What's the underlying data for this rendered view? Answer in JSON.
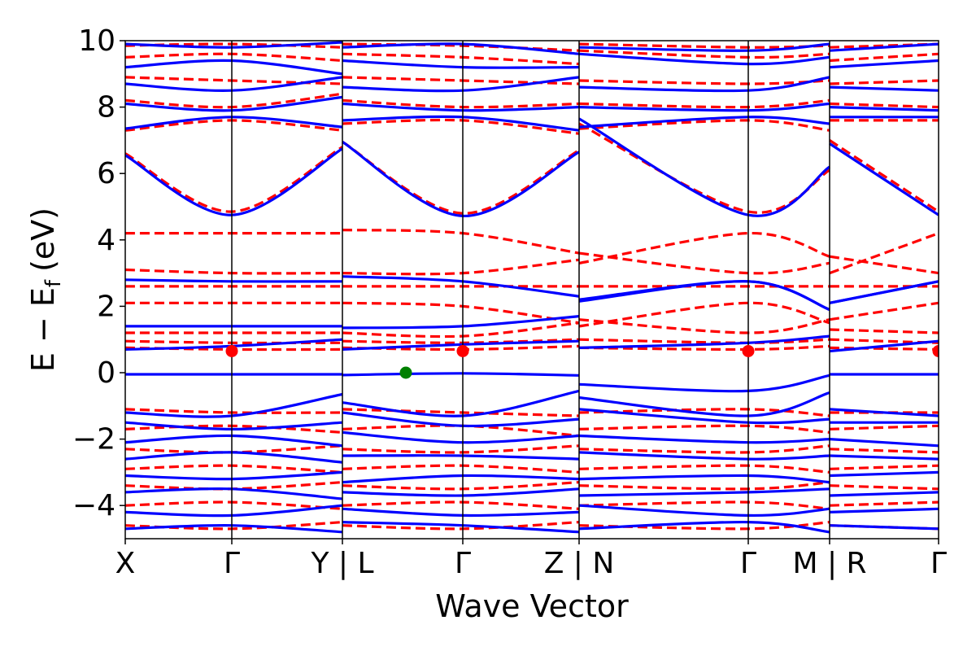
{
  "chart_data": {
    "type": "line",
    "title": "",
    "xlabel": "Wave Vector",
    "ylabel": "E − E_f (eV)",
    "ylabel_parts": {
      "main": "E − E",
      "sub": "f",
      "unit": "(eV)"
    },
    "ylim": [
      -5,
      10
    ],
    "yticks": [
      {
        "value": -4,
        "label": "−4"
      },
      {
        "value": -2,
        "label": "−2"
      },
      {
        "value": 0,
        "label": "0"
      },
      {
        "value": 2,
        "label": "2"
      },
      {
        "value": 4,
        "label": "4"
      },
      {
        "value": 6,
        "label": "6"
      },
      {
        "value": 8,
        "label": "8"
      },
      {
        "value": 10,
        "label": "10"
      }
    ],
    "xlim": [
      0,
      1
    ],
    "xticks": [
      {
        "value": 0.0,
        "label": "X"
      },
      {
        "value": 0.131,
        "label": "Γ"
      },
      {
        "value": 0.267,
        "label": "Y | L"
      },
      {
        "value": 0.415,
        "label": "Γ"
      },
      {
        "value": 0.558,
        "label": "Z | N"
      },
      {
        "value": 0.766,
        "label": "Γ"
      },
      {
        "value": 0.866,
        "label": "M | R"
      },
      {
        "value": 1.0,
        "label": "Γ"
      }
    ],
    "grid": false,
    "legend": "none",
    "colors": {
      "series_blue": "#0000ff",
      "series_red": "#ff0000",
      "marker_green": "#008000",
      "marker_red": "#ff0000"
    },
    "series": [
      {
        "color": "#0000ff",
        "style": "solid",
        "bands": [
          [
            -0.05,
            -0.05,
            -0.05,
            -0.07,
            -0.02,
            -0.08,
            -0.35,
            -0.55,
            -0.08,
            -0.05,
            -0.05,
            -0.1
          ],
          [
            6.55,
            4.75,
            6.75,
            6.95,
            4.72,
            6.65,
            7.65,
            4.75,
            6.2,
            6.9,
            4.75,
            4.75
          ],
          [
            0.7,
            0.8,
            1.0,
            0.7,
            0.85,
            0.95,
            0.75,
            0.9,
            1.1,
            0.65,
            0.95,
            1.35
          ],
          [
            1.4,
            1.4,
            1.4,
            1.35,
            1.4,
            1.7,
            2.15,
            2.75,
            1.9,
            2.1,
            2.75,
            2.75
          ],
          [
            2.8,
            2.75,
            2.75,
            2.9,
            2.75,
            2.3,
            2.2,
            2.75,
            1.9,
            2.1,
            2.75,
            2.75
          ],
          [
            -1.2,
            -1.3,
            -0.65,
            -0.9,
            -1.3,
            -0.55,
            -0.75,
            -1.3,
            -0.6,
            -1.1,
            -1.3,
            -1.3
          ],
          [
            -1.5,
            -1.7,
            -1.5,
            -1.2,
            -1.6,
            -1.4,
            -1.1,
            -1.5,
            -1.4,
            -1.5,
            -1.5,
            -1.7
          ],
          [
            -2.1,
            -1.9,
            -2.2,
            -1.8,
            -2.1,
            -1.9,
            -1.9,
            -2.1,
            -2.0,
            -2.0,
            -2.2,
            -2.0
          ],
          [
            -2.6,
            -2.4,
            -2.7,
            -2.5,
            -2.5,
            -2.6,
            -2.4,
            -2.6,
            -2.5,
            -2.5,
            -2.6,
            -2.4
          ],
          [
            -3.1,
            -3.2,
            -3.0,
            -3.3,
            -3.1,
            -3.2,
            -3.2,
            -3.1,
            -3.3,
            -3.1,
            -3.0,
            -3.2
          ],
          [
            -3.6,
            -3.5,
            -3.8,
            -3.6,
            -3.7,
            -3.5,
            -3.7,
            -3.6,
            -3.5,
            -3.7,
            -3.6,
            -3.5
          ],
          [
            -4.2,
            -4.3,
            -4.0,
            -4.1,
            -4.3,
            -4.2,
            -4.0,
            -4.3,
            -4.1,
            -4.2,
            -4.1,
            -4.3
          ],
          [
            -4.7,
            -4.6,
            -4.8,
            -4.5,
            -4.6,
            -4.8,
            -4.7,
            -4.5,
            -4.8,
            -4.6,
            -4.7,
            -4.6
          ],
          [
            7.35,
            7.7,
            7.4,
            7.6,
            7.7,
            7.3,
            7.4,
            7.7,
            7.5,
            7.7,
            7.7,
            7.7
          ],
          [
            8.1,
            7.9,
            8.3,
            8.1,
            7.9,
            8.0,
            8.0,
            7.9,
            8.1,
            8.0,
            7.9,
            8.0
          ],
          [
            8.7,
            8.5,
            8.9,
            8.6,
            8.5,
            8.9,
            8.6,
            8.5,
            8.9,
            8.6,
            8.5,
            8.6
          ],
          [
            9.2,
            9.4,
            9.0,
            9.4,
            9.2,
            9.2,
            9.6,
            9.3,
            9.5,
            9.2,
            9.4,
            9.3
          ],
          [
            9.9,
            9.8,
            9.95,
            9.8,
            9.9,
            9.6,
            9.8,
            9.7,
            9.9,
            9.7,
            9.9,
            9.8
          ]
        ]
      },
      {
        "color": "#ff0000",
        "style": "dashed",
        "bands": [
          [
            6.6,
            4.85,
            6.8,
            6.95,
            4.8,
            6.7,
            7.5,
            4.85,
            6.1,
            7.0,
            4.85,
            4.85
          ],
          [
            4.2,
            4.2,
            4.2,
            4.3,
            4.2,
            3.6,
            3.3,
            4.2,
            3.5,
            3.0,
            4.2,
            4.2
          ],
          [
            3.1,
            3.0,
            3.0,
            3.0,
            3.0,
            3.4,
            3.6,
            3.0,
            3.3,
            3.5,
            3.0,
            3.0
          ],
          [
            2.6,
            2.6,
            2.6,
            2.6,
            2.6,
            2.6,
            2.6,
            2.6,
            2.6,
            2.6,
            2.6,
            2.6
          ],
          [
            2.1,
            2.1,
            2.1,
            2.1,
            2.0,
            1.5,
            1.4,
            2.1,
            1.5,
            1.6,
            2.1,
            2.1
          ],
          [
            1.2,
            1.2,
            1.2,
            1.2,
            1.1,
            1.5,
            1.6,
            1.2,
            1.6,
            1.3,
            1.2,
            1.2
          ],
          [
            0.95,
            0.9,
            0.9,
            0.95,
            0.9,
            1.0,
            1.0,
            0.9,
            1.0,
            1.0,
            0.9,
            0.9
          ],
          [
            0.75,
            0.7,
            0.7,
            0.75,
            0.7,
            0.8,
            0.75,
            0.7,
            0.8,
            0.75,
            0.7,
            0.7
          ],
          [
            -1.1,
            -1.2,
            -1.2,
            -1.1,
            -1.2,
            -1.3,
            -1.2,
            -1.1,
            -1.3,
            -1.2,
            -1.2,
            -1.2
          ],
          [
            -1.7,
            -1.6,
            -1.8,
            -1.7,
            -1.6,
            -1.9,
            -1.7,
            -1.6,
            -1.8,
            -1.7,
            -1.6,
            -1.7
          ],
          [
            -2.3,
            -2.4,
            -2.2,
            -2.3,
            -2.4,
            -2.2,
            -2.3,
            -2.4,
            -2.2,
            -2.3,
            -2.4,
            -2.3
          ],
          [
            -2.9,
            -2.8,
            -3.0,
            -2.9,
            -2.8,
            -3.0,
            -2.9,
            -2.8,
            -3.0,
            -2.9,
            -2.8,
            -2.9
          ],
          [
            -3.4,
            -3.5,
            -3.3,
            -3.4,
            -3.5,
            -3.3,
            -3.4,
            -3.5,
            -3.3,
            -3.4,
            -3.5,
            -3.4
          ],
          [
            -4.0,
            -3.9,
            -4.1,
            -4.0,
            -3.9,
            -4.1,
            -4.0,
            -3.9,
            -4.1,
            -4.0,
            -3.9,
            -4.0
          ],
          [
            -4.6,
            -4.7,
            -4.5,
            -4.6,
            -4.7,
            -4.5,
            -4.6,
            -4.7,
            -4.5,
            -4.6,
            -4.7,
            -4.6
          ],
          [
            7.3,
            7.6,
            7.3,
            7.5,
            7.6,
            7.2,
            7.35,
            7.6,
            7.3,
            7.6,
            7.6,
            7.6
          ],
          [
            8.2,
            8.0,
            8.4,
            8.2,
            8.0,
            8.1,
            8.1,
            8.0,
            8.2,
            8.1,
            8.0,
            8.1
          ],
          [
            8.9,
            8.8,
            8.7,
            8.9,
            8.8,
            8.7,
            8.8,
            8.7,
            8.8,
            8.7,
            8.8,
            8.9
          ],
          [
            9.5,
            9.6,
            9.4,
            9.6,
            9.5,
            9.3,
            9.7,
            9.5,
            9.6,
            9.4,
            9.6,
            9.5
          ],
          [
            9.85,
            9.9,
            9.8,
            9.9,
            9.85,
            9.7,
            9.9,
            9.8,
            9.85,
            9.8,
            9.9,
            9.85
          ]
        ]
      }
    ],
    "band_x": [
      0.0,
      0.131,
      0.267,
      0.267,
      0.415,
      0.558,
      0.558,
      0.766,
      0.866,
      0.866,
      1.0,
      1.0
    ],
    "markers": [
      {
        "x": 0.131,
        "y": 0.65,
        "color": "#ff0000"
      },
      {
        "x": 0.415,
        "y": 0.65,
        "color": "#ff0000"
      },
      {
        "x": 0.766,
        "y": 0.65,
        "color": "#ff0000"
      },
      {
        "x": 1.0,
        "y": 0.65,
        "color": "#ff0000"
      },
      {
        "x": 0.345,
        "y": 0.0,
        "color": "#008000"
      }
    ]
  }
}
